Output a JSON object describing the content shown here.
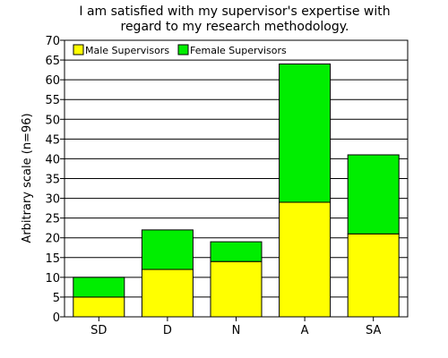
{
  "chart_data": {
    "type": "bar",
    "stacked": true,
    "title": [
      "I am satisfied with my supervisor's expertise with",
      "regard to my research methodology."
    ],
    "ylabel": "Arbitrary scale (n=96)",
    "xlabel": "",
    "categories": [
      "SD",
      "D",
      "N",
      "A",
      "SA"
    ],
    "ylim": [
      0,
      70
    ],
    "yticks": [
      0,
      5,
      10,
      15,
      20,
      25,
      30,
      35,
      40,
      45,
      50,
      55,
      60,
      65,
      70
    ],
    "grid": true,
    "legend_position": "top-left",
    "series": [
      {
        "name": "Male Supervisors",
        "color": "#ffff00",
        "values": [
          5,
          12,
          14,
          29,
          21
        ]
      },
      {
        "name": "Female Supervisors",
        "color": "#00ee00",
        "values": [
          5,
          10,
          5,
          35,
          20
        ]
      }
    ]
  }
}
